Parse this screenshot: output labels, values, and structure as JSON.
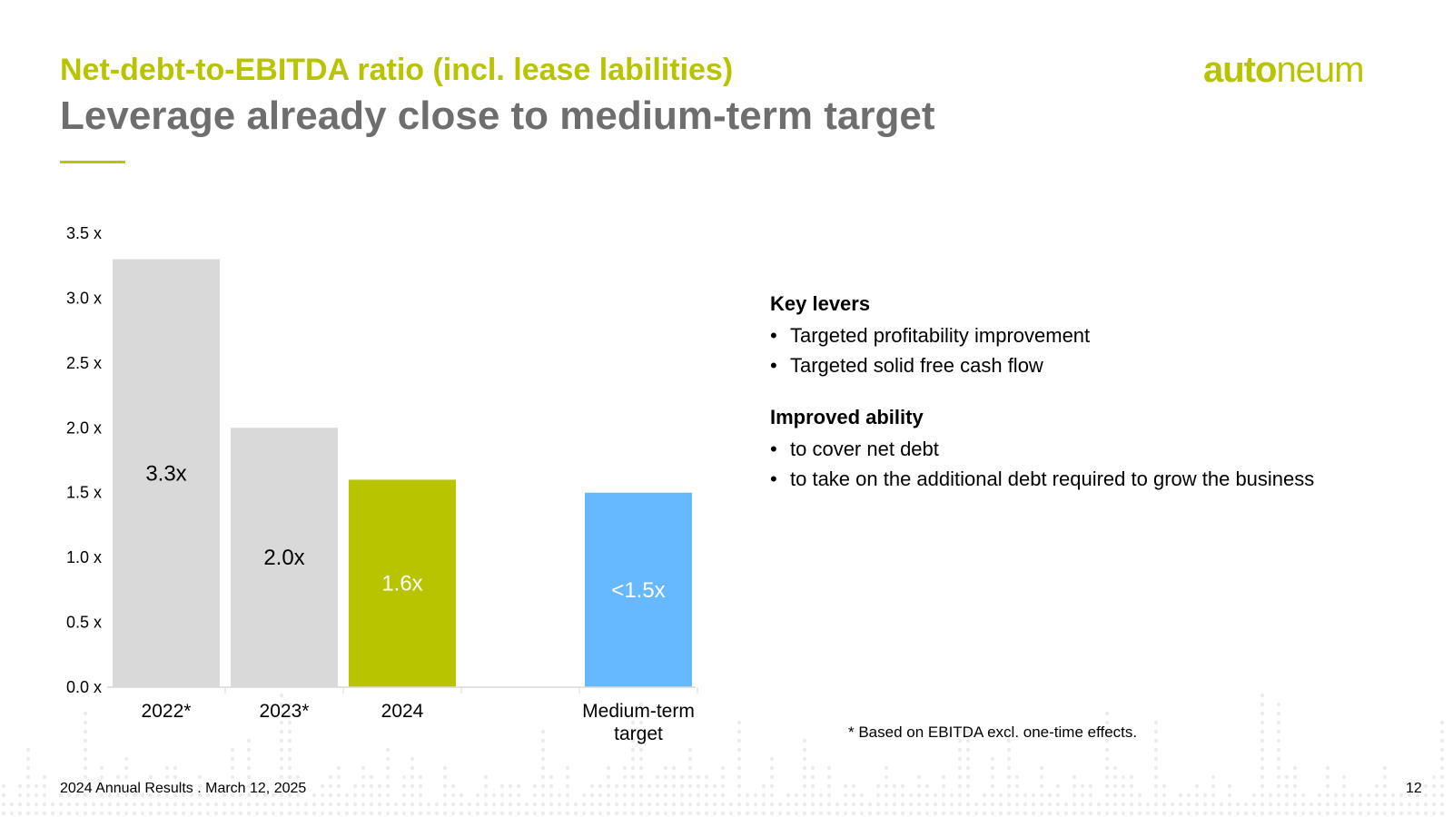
{
  "header": {
    "supertitle": "Net-debt-to-EBITDA ratio (incl. lease labilities)",
    "title": "Leverage already close to medium-term target",
    "logo_bold": "auto",
    "logo_thin": "neum"
  },
  "chart_data": {
    "type": "bar",
    "categories": [
      "2022*",
      "2023*",
      "2024",
      "",
      "Medium-term\ntarget"
    ],
    "values": [
      3.3,
      2.0,
      1.6,
      null,
      1.5
    ],
    "data_labels": [
      "3.3x",
      "2.0x",
      "1.6x",
      "",
      "<1.5x"
    ],
    "colors": [
      "#d9d9d9",
      "#d9d9d9",
      "#b8c400",
      null,
      "#66b9ff"
    ],
    "label_colors": [
      "#000000",
      "#000000",
      "#ffffff",
      null,
      "#ffffff"
    ],
    "y_ticks": [
      "0.0 x",
      "0.5 x",
      "1.0 x",
      "1.5 x",
      "2.0 x",
      "2.5 x",
      "3.0 x",
      "3.5 x"
    ],
    "ylim": [
      0,
      3.5
    ],
    "title": "",
    "xlabel": "",
    "ylabel": ""
  },
  "panel": {
    "section1_heading": "Key levers",
    "section1_items": [
      "Targeted profitability improvement",
      "Targeted solid free cash flow"
    ],
    "section2_heading": "Improved ability",
    "section2_items": [
      "to cover net debt",
      "to take on the additional debt required to grow the business"
    ]
  },
  "footnote": "* Based on EBITDA excl. one-time effects.",
  "footer": {
    "text": "2024 Annual Results . March 12, 2025",
    "page": "12"
  }
}
